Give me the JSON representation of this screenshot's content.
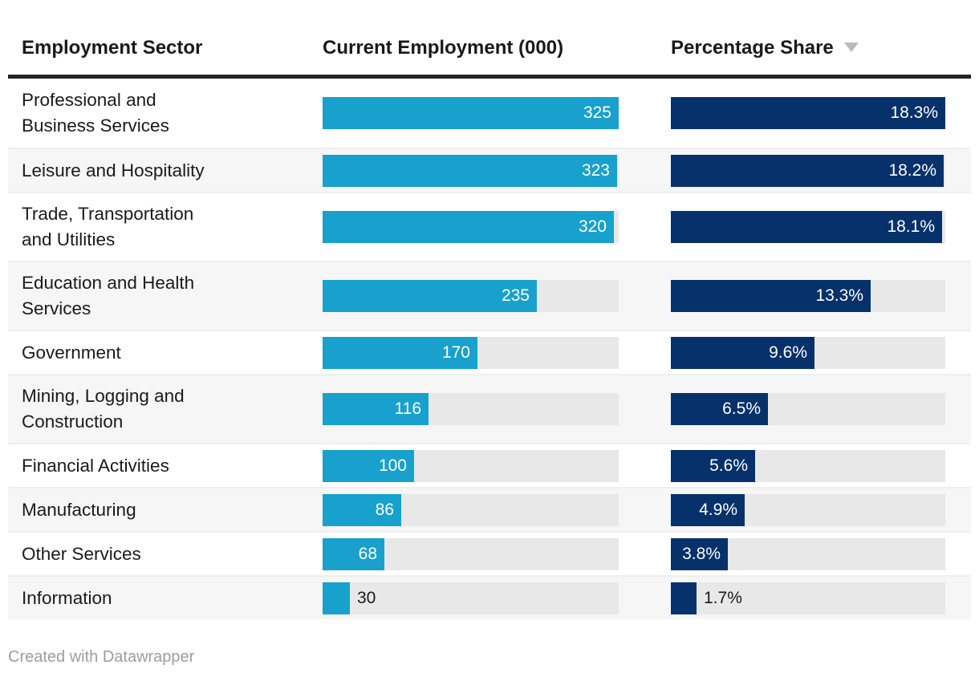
{
  "header": {
    "sort": {
      "column": "Percentage Share",
      "direction": "desc"
    }
  },
  "footer": {
    "credit": "Created with Datawrapper"
  },
  "colors": {
    "employment_bar": "#18a1cd",
    "share_bar": "#07316b",
    "bar_track": "#e8e8e8",
    "row_alt_background": "#f6f6f6",
    "header_rule": "#242424",
    "text": "#1a1a1a",
    "bar_label_inside": "#ffffff",
    "bar_label_outside": "#1c1c1c",
    "credit_text": "#9d9d9d",
    "sort_icon": "#bcbcbc"
  },
  "chart_data": {
    "type": "table",
    "columns": [
      "Employment Sector",
      "Current Employment (000)",
      "Percentage Share"
    ],
    "sorted_by": "Percentage Share",
    "sort_direction": "desc",
    "employment_max": 325,
    "share_max": 18.3,
    "share_suffix": "%",
    "rows": [
      {
        "sector": "Professional and Business Services",
        "sector_lines": [
          "Professional and",
          "Business Services"
        ],
        "employment": 325,
        "employment_label": "325",
        "share": 18.3,
        "share_label": "18.3%"
      },
      {
        "sector": "Leisure and Hospitality",
        "sector_lines": [
          "Leisure and Hospitality"
        ],
        "employment": 323,
        "employment_label": "323",
        "share": 18.2,
        "share_label": "18.2%"
      },
      {
        "sector": "Trade, Transportation and Utilities",
        "sector_lines": [
          "Trade, Transportation",
          "and Utilities"
        ],
        "employment": 320,
        "employment_label": "320",
        "share": 18.1,
        "share_label": "18.1%"
      },
      {
        "sector": "Education and Health Services",
        "sector_lines": [
          "Education and Health",
          "Services"
        ],
        "employment": 235,
        "employment_label": "235",
        "share": 13.3,
        "share_label": "13.3%"
      },
      {
        "sector": "Government",
        "sector_lines": [
          "Government"
        ],
        "employment": 170,
        "employment_label": "170",
        "share": 9.6,
        "share_label": "9.6%"
      },
      {
        "sector": "Mining, Logging and Construction",
        "sector_lines": [
          "Mining, Logging and",
          "Construction"
        ],
        "employment": 116,
        "employment_label": "116",
        "share": 6.5,
        "share_label": "6.5%"
      },
      {
        "sector": "Financial Activities",
        "sector_lines": [
          "Financial Activities"
        ],
        "employment": 100,
        "employment_label": "100",
        "share": 5.6,
        "share_label": "5.6%"
      },
      {
        "sector": "Manufacturing",
        "sector_lines": [
          "Manufacturing"
        ],
        "employment": 86,
        "employment_label": "86",
        "share": 4.9,
        "share_label": "4.9%"
      },
      {
        "sector": "Other Services",
        "sector_lines": [
          "Other Services"
        ],
        "employment": 68,
        "employment_label": "68",
        "share": 3.8,
        "share_label": "3.8%"
      },
      {
        "sector": "Information",
        "sector_lines": [
          "Information"
        ],
        "employment": 30,
        "employment_label": "30",
        "share": 1.7,
        "share_label": "1.7%"
      }
    ]
  }
}
